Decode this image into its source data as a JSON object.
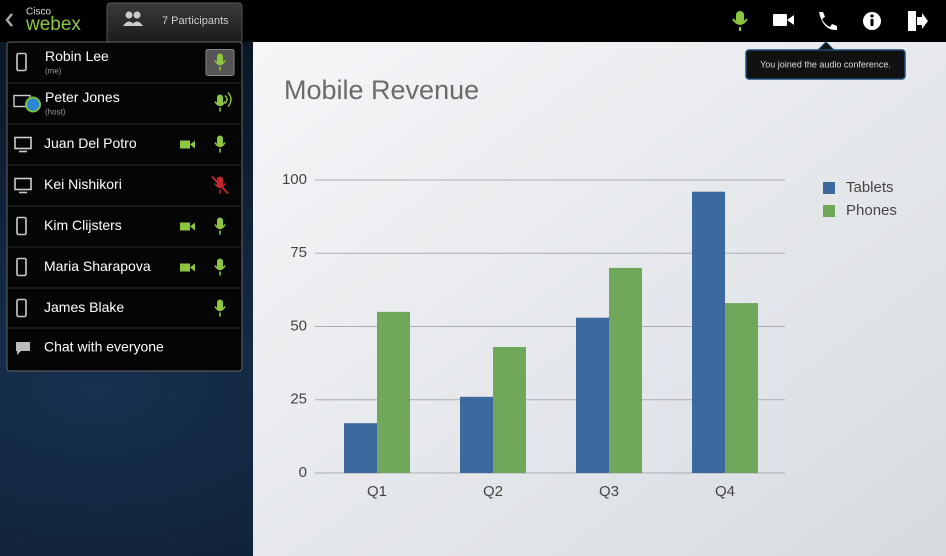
{
  "header": {
    "brand_small": "Cisco",
    "brand": "webex",
    "participants_tab": "7 Participants"
  },
  "tooltip": "You joined the audio conference.",
  "participants": [
    {
      "name": "Robin Lee",
      "role": "(me)"
    },
    {
      "name": "Peter Jones",
      "role": "(host)"
    },
    {
      "name": "Juan Del Potro"
    },
    {
      "name": "Kei Nishikori"
    },
    {
      "name": "Kim Clijsters"
    },
    {
      "name": "Maria Sharapova"
    },
    {
      "name": "James Blake"
    }
  ],
  "chat": "Chat with everyone",
  "chart_data": {
    "type": "bar",
    "title": "Mobile Revenue",
    "categories": [
      "Q1",
      "Q2",
      "Q3",
      "Q4"
    ],
    "series": [
      {
        "name": "Tablets",
        "color": "#3c6a9e",
        "values": [
          17,
          26,
          53,
          96
        ]
      },
      {
        "name": "Phones",
        "color": "#6fa85b",
        "values": [
          55,
          43,
          70,
          58
        ]
      }
    ],
    "ylim": [
      0,
      100
    ],
    "yticks": [
      0,
      25,
      50,
      75,
      100
    ],
    "grid": true,
    "legend": "upper right"
  }
}
